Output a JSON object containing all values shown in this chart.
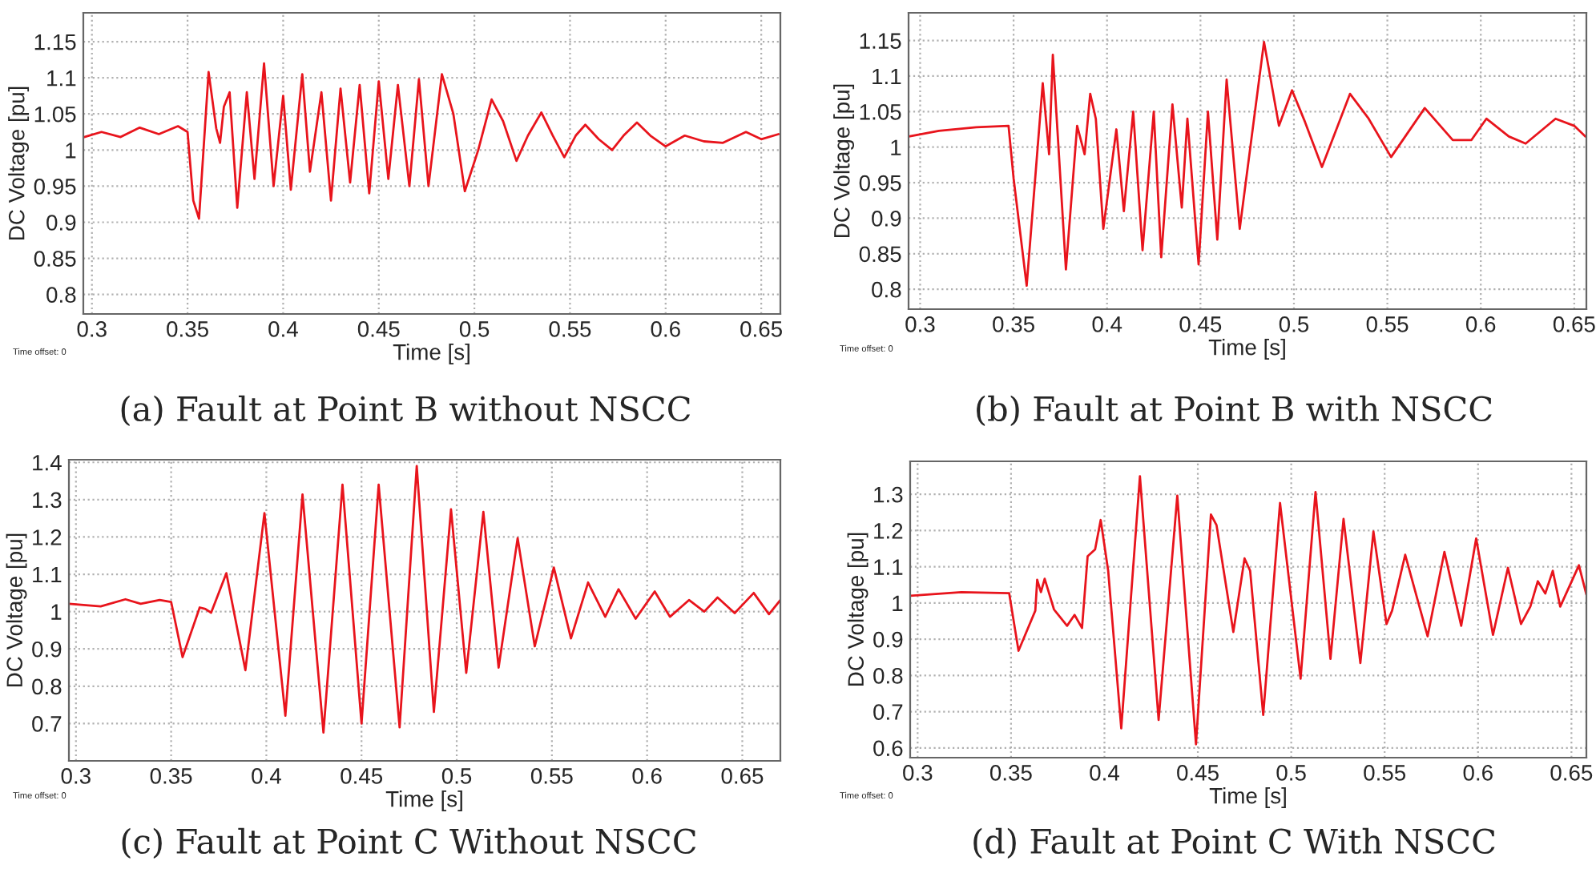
{
  "chart_data": [
    {
      "type": "line",
      "title": "(a) Fault at Point B without NSCC",
      "xlabel": "Time [s]",
      "ylabel": "DC Voltage [pu]",
      "grid": true,
      "annotations": [
        "Time offset: 0"
      ],
      "xlim": [
        0.2955,
        0.66
      ],
      "ylim": [
        0.773,
        1.19
      ],
      "xticks": [
        0.3,
        0.35,
        0.4,
        0.45,
        0.5,
        0.55,
        0.6,
        0.65
      ],
      "yticks": [
        0.8,
        0.85,
        0.9,
        0.95,
        1,
        1.05,
        1.1,
        1.15
      ],
      "series": [
        {
          "color": "#e8141c",
          "x": [
            0.296,
            0.305,
            0.315,
            0.325,
            0.335,
            0.345,
            0.35,
            0.353,
            0.356,
            0.361,
            0.365,
            0.367,
            0.369,
            0.372,
            0.376,
            0.381,
            0.385,
            0.39,
            0.395,
            0.4,
            0.404,
            0.41,
            0.414,
            0.42,
            0.425,
            0.43,
            0.435,
            0.44,
            0.445,
            0.45,
            0.455,
            0.46,
            0.466,
            0.471,
            0.476,
            0.483,
            0.489,
            0.495,
            0.502,
            0.509,
            0.515,
            0.522,
            0.528,
            0.535,
            0.541,
            0.547,
            0.553,
            0.558,
            0.565,
            0.572,
            0.578,
            0.585,
            0.592,
            0.6,
            0.61,
            0.62,
            0.63,
            0.642,
            0.65,
            0.659
          ],
          "values": [
            1.018,
            1.025,
            1.018,
            1.031,
            1.022,
            1.033,
            1.025,
            0.93,
            0.905,
            1.108,
            1.03,
            1.01,
            1.06,
            1.08,
            0.92,
            1.08,
            0.96,
            1.12,
            0.95,
            1.075,
            0.945,
            1.105,
            0.97,
            1.08,
            0.93,
            1.085,
            0.955,
            1.09,
            0.94,
            1.095,
            0.96,
            1.09,
            0.95,
            1.098,
            0.95,
            1.105,
            1.05,
            0.943,
            1.0,
            1.07,
            1.04,
            0.985,
            1.02,
            1.052,
            1.02,
            0.99,
            1.02,
            1.035,
            1.015,
            1.0,
            1.02,
            1.038,
            1.02,
            1.005,
            1.02,
            1.012,
            1.01,
            1.025,
            1.015,
            1.022
          ]
        }
      ]
    },
    {
      "type": "line",
      "title": "(b) Fault at Point B with NSCC",
      "xlabel": "Time [s]",
      "ylabel": "DC Voltage [pu]",
      "grid": true,
      "annotations": [
        "Time offset: 0"
      ],
      "xlim": [
        0.2938,
        0.6565
      ],
      "ylim": [
        0.772,
        1.189
      ],
      "xticks": [
        0.3,
        0.35,
        0.4,
        0.45,
        0.5,
        0.55,
        0.6,
        0.65
      ],
      "yticks": [
        0.8,
        0.85,
        0.9,
        0.95,
        1,
        1.05,
        1.1,
        1.15
      ],
      "series": [
        {
          "color": "#e8141c",
          "x": [
            0.294,
            0.31,
            0.33,
            0.3473,
            0.35,
            0.357,
            0.3656,
            0.369,
            0.371,
            0.378,
            0.384,
            0.388,
            0.391,
            0.394,
            0.398,
            0.405,
            0.409,
            0.414,
            0.419,
            0.425,
            0.429,
            0.435,
            0.44,
            0.443,
            0.449,
            0.454,
            0.459,
            0.464,
            0.471,
            0.484,
            0.492,
            0.499,
            0.506,
            0.515,
            0.53,
            0.54,
            0.552,
            0.57,
            0.585,
            0.595,
            0.603,
            0.615,
            0.624,
            0.64,
            0.65,
            0.656
          ],
          "values": [
            1.015,
            1.023,
            1.028,
            1.03,
            0.956,
            0.805,
            1.09,
            0.99,
            1.13,
            0.828,
            1.03,
            0.99,
            1.075,
            1.04,
            0.885,
            1.025,
            0.91,
            1.05,
            0.855,
            1.05,
            0.845,
            1.06,
            0.915,
            1.04,
            0.835,
            1.05,
            0.87,
            1.095,
            0.885,
            1.148,
            1.03,
            1.08,
            1.035,
            0.972,
            1.075,
            1.04,
            0.986,
            1.055,
            1.01,
            1.01,
            1.04,
            1.015,
            1.005,
            1.04,
            1.03,
            1.015
          ]
        }
      ]
    },
    {
      "type": "line",
      "title": "(c) Fault at Point C Without NSCC",
      "xlabel": "Time [s]",
      "ylabel": "DC Voltage [pu]",
      "grid": true,
      "annotations": [
        "Time offset: 0"
      ],
      "xlim": [
        0.2963,
        0.67
      ],
      "ylim": [
        0.6,
        1.407
      ],
      "xticks": [
        0.3,
        0.35,
        0.4,
        0.45,
        0.5,
        0.55,
        0.6,
        0.65
      ],
      "yticks": [
        0.7,
        0.8,
        0.9,
        1,
        1.1,
        1.2,
        1.3,
        1.4
      ],
      "series": [
        {
          "color": "#e8141c",
          "x": [
            0.2963,
            0.313,
            0.326,
            0.334,
            0.344,
            0.35,
            0.356,
            0.365,
            0.368,
            0.371,
            0.379,
            0.389,
            0.399,
            0.41,
            0.419,
            0.43,
            0.44,
            0.45,
            0.459,
            0.47,
            0.479,
            0.488,
            0.497,
            0.505,
            0.514,
            0.522,
            0.532,
            0.541,
            0.551,
            0.56,
            0.569,
            0.578,
            0.585,
            0.594,
            0.604,
            0.612,
            0.622,
            0.63,
            0.637,
            0.646,
            0.656,
            0.664,
            0.67
          ],
          "values": [
            1.021,
            1.014,
            1.033,
            1.021,
            1.031,
            1.026,
            0.878,
            1.011,
            1.007,
            0.997,
            1.103,
            0.843,
            1.264,
            0.721,
            1.314,
            0.676,
            1.34,
            0.7,
            1.34,
            0.69,
            1.39,
            0.731,
            1.274,
            0.836,
            1.267,
            0.85,
            1.197,
            0.907,
            1.118,
            0.928,
            1.078,
            0.986,
            1.06,
            0.981,
            1.054,
            0.986,
            1.031,
            1.0,
            1.038,
            0.996,
            1.05,
            0.993,
            1.031
          ]
        }
      ]
    },
    {
      "type": "line",
      "title": "(d) Fault at Point C With NSCC",
      "xlabel": "Time [s]",
      "ylabel": "DC Voltage [pu]",
      "grid": true,
      "annotations": [
        "Time offset: 0"
      ],
      "xlim": [
        0.296,
        0.658
      ],
      "ylim": [
        0.573,
        1.391
      ],
      "xticks": [
        0.3,
        0.35,
        0.4,
        0.45,
        0.5,
        0.55,
        0.6,
        0.65
      ],
      "yticks": [
        0.6,
        0.7,
        0.8,
        0.9,
        1,
        1.1,
        1.2,
        1.3
      ],
      "series": [
        {
          "color": "#e8141c",
          "x": [
            0.296,
            0.3234,
            0.349,
            0.354,
            0.363,
            0.364,
            0.366,
            0.368,
            0.373,
            0.38,
            0.384,
            0.388,
            0.391,
            0.395,
            0.398,
            0.402,
            0.409,
            0.419,
            0.429,
            0.439,
            0.449,
            0.457,
            0.46,
            0.469,
            0.475,
            0.478,
            0.485,
            0.494,
            0.505,
            0.513,
            0.521,
            0.528,
            0.537,
            0.544,
            0.551,
            0.554,
            0.561,
            0.573,
            0.582,
            0.591,
            0.599,
            0.608,
            0.616,
            0.623,
            0.628,
            0.632,
            0.636,
            0.64,
            0.644,
            0.654,
            0.658
          ],
          "values": [
            1.02,
            1.03,
            1.027,
            0.868,
            0.979,
            1.064,
            1.03,
            1.067,
            0.982,
            0.937,
            0.967,
            0.931,
            1.129,
            1.148,
            1.229,
            1.089,
            0.654,
            1.35,
            0.677,
            1.296,
            0.61,
            1.244,
            1.215,
            0.92,
            1.123,
            1.089,
            0.691,
            1.276,
            0.791,
            1.306,
            0.846,
            1.232,
            0.834,
            1.197,
            0.942,
            0.979,
            1.133,
            0.908,
            1.141,
            0.937,
            1.178,
            0.912,
            1.097,
            0.942,
            0.99,
            1.06,
            1.026,
            1.089,
            0.99,
            1.104,
            1.023
          ]
        }
      ]
    }
  ]
}
